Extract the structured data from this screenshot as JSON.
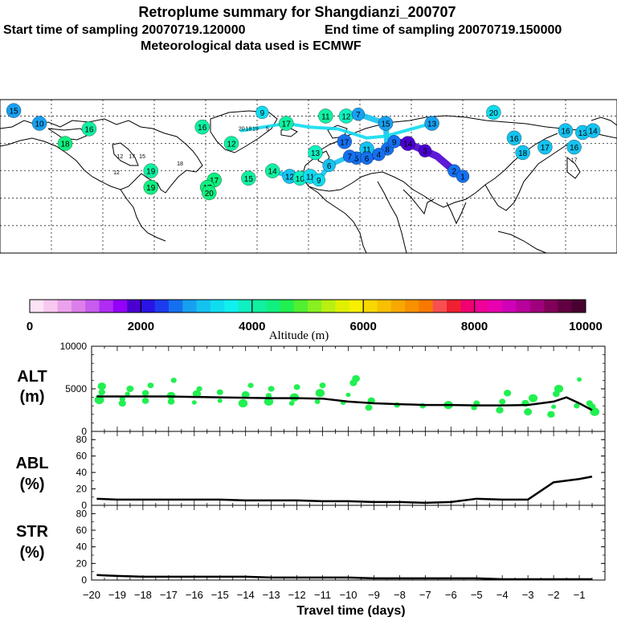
{
  "header": {
    "title": "Retroplume summary for Shangdianzi_200707",
    "start_label": "Start time of sampling 20070719.120000",
    "end_label": "End time of sampling 20070719.150000",
    "met_label": "Meteorological data used is ECMWF"
  },
  "colorbar": {
    "ticks": [
      "0",
      "2000",
      "4000",
      "6000",
      "8000",
      "10000"
    ],
    "label": "Altitude (m)",
    "colors": [
      "#fde3f6",
      "#f8c8f0",
      "#eba2ec",
      "#dd7fea",
      "#c75cef",
      "#b02cf2",
      "#9400f8",
      "#4b00d0",
      "#2a14e6",
      "#1c3cf0",
      "#1570f0",
      "#17a0f0",
      "#14c2f0",
      "#10dcf0",
      "#10f0f0",
      "#10f0c0",
      "#10f0a0",
      "#10f080",
      "#20f050",
      "#50f030",
      "#88f020",
      "#b8f010",
      "#e0f000",
      "#f8f000",
      "#f8d800",
      "#f8c000",
      "#f8a800",
      "#f89000",
      "#f87800",
      "#f85050",
      "#f02030",
      "#f00070",
      "#f00098",
      "#e800b0",
      "#d000b8",
      "#b8009c",
      "#a0007c",
      "#80005a",
      "#600040",
      "#480030"
    ]
  },
  "map": {
    "symbols": [
      {
        "label": "15",
        "lon": -172,
        "lat": 78,
        "color": "#17a0f0"
      },
      {
        "label": "10",
        "lon": -157,
        "lat": 71,
        "color": "#17a0f0"
      },
      {
        "label": "9",
        "lon": -27,
        "lat": 77,
        "color": "#10dcf0"
      },
      {
        "label": "11",
        "lon": 10,
        "lat": 75,
        "color": "#10f0a0"
      },
      {
        "label": "12",
        "lon": 22,
        "lat": 75,
        "color": "#10f0c0"
      },
      {
        "label": "20",
        "lon": 108,
        "lat": 77,
        "color": "#10dcf0"
      },
      {
        "label": "7",
        "lon": 29,
        "lat": 76,
        "color": "#17a0f0"
      },
      {
        "label": "15",
        "lon": 45,
        "lat": 71,
        "color": "#17a0f0"
      },
      {
        "label": "17",
        "lon": -13,
        "lat": 71,
        "color": "#10f0a0"
      },
      {
        "label": "16",
        "lon": -62,
        "lat": 69,
        "color": "#10f0a0"
      },
      {
        "label": "16",
        "lon": -128,
        "lat": 68,
        "color": "#10f0a0"
      },
      {
        "label": "13",
        "lon": 72,
        "lat": 71,
        "color": "#17a0f0"
      },
      {
        "label": "16",
        "lon": 150,
        "lat": 67,
        "color": "#14c2f0"
      },
      {
        "label": "13",
        "lon": 160,
        "lat": 66,
        "color": "#14c2f0"
      },
      {
        "label": "14",
        "lon": 166,
        "lat": 67,
        "color": "#14c2f0"
      },
      {
        "label": "16",
        "lon": 120,
        "lat": 63,
        "color": "#14c2f0"
      },
      {
        "label": "17",
        "lon": 138,
        "lat": 58,
        "color": "#14c2f0"
      },
      {
        "label": "16",
        "lon": 155,
        "lat": 58,
        "color": "#14c2f0"
      },
      {
        "label": "18",
        "lon": 125,
        "lat": 55,
        "color": "#14c2f0"
      },
      {
        "label": "12",
        "lon": -45,
        "lat": 60,
        "color": "#10f0a0"
      },
      {
        "label": "13",
        "lon": 4,
        "lat": 55,
        "color": "#10f0c0"
      },
      {
        "label": "17",
        "lon": 21,
        "lat": 61,
        "color": "#1570f0"
      },
      {
        "label": "11",
        "lon": 34,
        "lat": 57,
        "color": "#14c2f0"
      },
      {
        "label": "8",
        "lon": 46,
        "lat": 57,
        "color": "#1570f0"
      },
      {
        "label": "9",
        "lon": 50,
        "lat": 61,
        "color": "#1570f0"
      },
      {
        "label": "14",
        "lon": 58,
        "lat": 60,
        "color": "#4b00d0"
      },
      {
        "label": "3",
        "lon": 68,
        "lat": 56,
        "color": "#4b00d0"
      },
      {
        "label": "2",
        "lon": 85,
        "lat": 45,
        "color": "#1570f0"
      },
      {
        "label": "1",
        "lon": 90,
        "lat": 42,
        "color": "#1570f0"
      },
      {
        "label": "5",
        "lon": 28,
        "lat": 52,
        "color": "#1570f0"
      },
      {
        "label": "6",
        "lon": 34,
        "lat": 52,
        "color": "#1570f0"
      },
      {
        "label": "4",
        "lon": 41,
        "lat": 54,
        "color": "#1570f0"
      },
      {
        "label": "7",
        "lon": 24,
        "lat": 53,
        "color": "#1570f0"
      },
      {
        "label": "6",
        "lon": 12,
        "lat": 48,
        "color": "#14c2f0"
      },
      {
        "label": "15",
        "lon": -35,
        "lat": 41,
        "color": "#10f0a0"
      },
      {
        "label": "14",
        "lon": -21,
        "lat": 45,
        "color": "#10f0a0"
      },
      {
        "label": "12",
        "lon": -11,
        "lat": 42,
        "color": "#14c2f0"
      },
      {
        "label": "10",
        "lon": -5,
        "lat": 41,
        "color": "#10f0c0"
      },
      {
        "label": "11",
        "lon": 1,
        "lat": 42,
        "color": "#10dcf0"
      },
      {
        "label": "9",
        "lon": 6,
        "lat": 40,
        "color": "#10dcf0"
      },
      {
        "label": "17",
        "lon": -55,
        "lat": 40,
        "color": "#10f080"
      },
      {
        "label": "17",
        "lon": -59,
        "lat": 36,
        "color": "#10f080"
      },
      {
        "label": "19",
        "lon": -92,
        "lat": 45,
        "color": "#10f0a0"
      },
      {
        "label": "19",
        "lon": -92,
        "lat": 36,
        "color": "#10f080"
      },
      {
        "label": "18",
        "lon": -142,
        "lat": 60,
        "color": "#10f080"
      },
      {
        "label": "20",
        "lon": -58,
        "lat": 33,
        "color": "#10f080"
      }
    ],
    "cluster_labels": [
      {
        "label": "20",
        "lon": -39,
        "lat": 67
      },
      {
        "label": "18",
        "lon": -35,
        "lat": 67
      },
      {
        "label": "19",
        "lon": -31,
        "lat": 67
      },
      {
        "label": "5",
        "lon": -24,
        "lat": 67
      },
      {
        "label": "12",
        "lon": -110,
        "lat": 52
      },
      {
        "label": "17",
        "lon": -103,
        "lat": 52
      },
      {
        "label": "15",
        "lon": -97,
        "lat": 52
      },
      {
        "label": "12",
        "lon": -112,
        "lat": 43
      },
      {
        "label": "18",
        "lon": -75,
        "lat": 48
      },
      {
        "label": "17",
        "lon": 155,
        "lat": 50
      }
    ]
  },
  "chart_data": [
    {
      "type": "scatter",
      "panel_label": "ALT\n(m)",
      "ylabel": "ALT",
      "yunit": "(m)",
      "ylim": [
        0,
        10000
      ],
      "yticks": [
        "0",
        "5000",
        "10000"
      ],
      "line": {
        "x": [
          -19.8,
          -19,
          -18,
          -17,
          -16,
          -15,
          -14,
          -13,
          -12,
          -11,
          -10,
          -9,
          -8,
          -7,
          -6,
          -5,
          -4,
          -3,
          -2,
          -1.5,
          -1,
          -0.5
        ],
        "y": [
          4100,
          4100,
          4100,
          4100,
          4050,
          4000,
          3950,
          3900,
          3900,
          3850,
          3500,
          3300,
          3200,
          3100,
          3100,
          3050,
          3050,
          3100,
          3500,
          4000,
          3300,
          2500
        ]
      },
      "points": [
        {
          "x": -19.7,
          "y": 3700
        },
        {
          "x": -19.6,
          "y": 4600
        },
        {
          "x": -19.6,
          "y": 5300
        },
        {
          "x": -19.7,
          "y": 3900
        },
        {
          "x": -18.8,
          "y": 3300
        },
        {
          "x": -18.8,
          "y": 3800
        },
        {
          "x": -18.6,
          "y": 4400
        },
        {
          "x": -18.5,
          "y": 5000
        },
        {
          "x": -17.9,
          "y": 3600
        },
        {
          "x": -17.9,
          "y": 4500
        },
        {
          "x": -17.7,
          "y": 5400
        },
        {
          "x": -16.9,
          "y": 3500
        },
        {
          "x": -16.9,
          "y": 4200
        },
        {
          "x": -16.8,
          "y": 6000
        },
        {
          "x": -16.0,
          "y": 3400
        },
        {
          "x": -15.9,
          "y": 4400
        },
        {
          "x": -15.8,
          "y": 5000
        },
        {
          "x": -15.0,
          "y": 3600
        },
        {
          "x": -15.0,
          "y": 4600
        },
        {
          "x": -14.1,
          "y": 3300
        },
        {
          "x": -14.0,
          "y": 4300
        },
        {
          "x": -13.8,
          "y": 5400
        },
        {
          "x": -13.1,
          "y": 3500
        },
        {
          "x": -13.1,
          "y": 4200
        },
        {
          "x": -13.0,
          "y": 5000
        },
        {
          "x": -12.2,
          "y": 3300
        },
        {
          "x": -12.1,
          "y": 4000
        },
        {
          "x": -12.0,
          "y": 5200
        },
        {
          "x": -11.2,
          "y": 3500
        },
        {
          "x": -11.1,
          "y": 4500
        },
        {
          "x": -11.0,
          "y": 5400
        },
        {
          "x": -10.2,
          "y": 3400
        },
        {
          "x": -10.0,
          "y": 4300
        },
        {
          "x": -9.8,
          "y": 5700
        },
        {
          "x": -9.7,
          "y": 6200
        },
        {
          "x": -9.2,
          "y": 2800
        },
        {
          "x": -9.1,
          "y": 3600
        },
        {
          "x": -8.1,
          "y": 3100
        },
        {
          "x": -7.1,
          "y": 3000
        },
        {
          "x": -6.1,
          "y": 3100
        },
        {
          "x": -5.1,
          "y": 2800
        },
        {
          "x": -5.0,
          "y": 3300
        },
        {
          "x": -4.1,
          "y": 2500
        },
        {
          "x": -4.0,
          "y": 3500
        },
        {
          "x": -3.8,
          "y": 4500
        },
        {
          "x": -3.1,
          "y": 3300
        },
        {
          "x": -3.0,
          "y": 2300
        },
        {
          "x": -2.8,
          "y": 3900
        },
        {
          "x": -2.1,
          "y": 2000
        },
        {
          "x": -2.0,
          "y": 2900
        },
        {
          "x": -1.9,
          "y": 4400
        },
        {
          "x": -1.8,
          "y": 5000
        },
        {
          "x": -1.1,
          "y": 3000
        },
        {
          "x": -1.0,
          "y": 6100
        },
        {
          "x": -0.6,
          "y": 3300
        },
        {
          "x": -0.5,
          "y": 2900
        },
        {
          "x": -0.4,
          "y": 2300
        }
      ]
    },
    {
      "type": "line",
      "ylabel": "ABL",
      "yunit": "(%)",
      "ylim": [
        0,
        90
      ],
      "yticks": [
        "0",
        "20",
        "40",
        "60",
        "80"
      ],
      "x": [
        -19.8,
        -19,
        -18,
        -17,
        -16,
        -15,
        -14,
        -13,
        -12,
        -11,
        -10,
        -9,
        -8,
        -7,
        -6,
        -5,
        -4,
        -3,
        -2,
        -1,
        -0.5
      ],
      "y": [
        8,
        7,
        7,
        7,
        7,
        7,
        6,
        6,
        6,
        5,
        5,
        4,
        4,
        3,
        4,
        8,
        7,
        7,
        28,
        32,
        35
      ]
    },
    {
      "type": "line",
      "ylabel": "STR",
      "yunit": "(%)",
      "ylim": [
        0,
        90
      ],
      "yticks": [
        "0",
        "20",
        "40",
        "60",
        "80"
      ],
      "x": [
        -19.8,
        -19,
        -18,
        -17,
        -16,
        -15,
        -14,
        -13,
        -12,
        -11,
        -10,
        -9,
        -8,
        -7,
        -6,
        -5,
        -4,
        -3,
        -2,
        -1,
        -0.5
      ],
      "y": [
        6,
        5,
        4,
        4,
        4,
        4,
        4,
        3,
        3,
        3,
        3,
        2,
        2,
        2,
        2,
        2,
        1,
        1,
        1,
        1,
        1
      ]
    },
    {
      "type": "axis",
      "xlabel": "Travel time (days)",
      "xlim": [
        -20,
        0
      ],
      "xticks": [
        "−20",
        "−19",
        "−18",
        "−17",
        "−16",
        "−15",
        "−14",
        "−13",
        "−12",
        "−11",
        "−10",
        "−9",
        "−8",
        "−7",
        "−6",
        "−5",
        "−4",
        "−3",
        "−2",
        "−1"
      ]
    }
  ]
}
